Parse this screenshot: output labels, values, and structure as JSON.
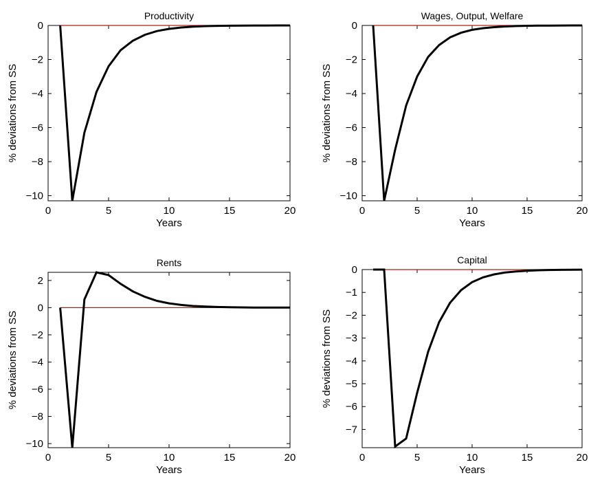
{
  "chart_data": [
    {
      "type": "line",
      "title": "Productivity",
      "xlabel": "Years",
      "ylabel": "% deviations from SS",
      "xlim": [
        0,
        20
      ],
      "ylim": [
        -10.3,
        0
      ],
      "xticks": [
        "0",
        "5",
        "10",
        "15",
        "20"
      ],
      "yticks": [
        "0",
        "−2",
        "−4",
        "−6",
        "−8",
        "−10"
      ],
      "grid": false,
      "reference_line": 0,
      "reference_color": "#b01c1c",
      "series_color": "#000000",
      "x": [
        1,
        2,
        3,
        4,
        5,
        6,
        7,
        8,
        9,
        10,
        11,
        12,
        13,
        14,
        15,
        16,
        17,
        18,
        19,
        20
      ],
      "values": [
        0,
        -10.3,
        -6.3,
        -3.9,
        -2.4,
        -1.45,
        -0.9,
        -0.55,
        -0.33,
        -0.2,
        -0.12,
        -0.07,
        -0.04,
        -0.025,
        -0.015,
        -0.01,
        -0.005,
        -0.003,
        -0.002,
        -0.001
      ]
    },
    {
      "type": "line",
      "title": "Wages, Output, Welfare",
      "xlabel": "Years",
      "ylabel": "% deviations from SS",
      "xlim": [
        0,
        20
      ],
      "ylim": [
        -10.3,
        0
      ],
      "xticks": [
        "0",
        "5",
        "10",
        "15",
        "20"
      ],
      "yticks": [
        "0",
        "−2",
        "−4",
        "−6",
        "−8",
        "−10"
      ],
      "grid": false,
      "reference_line": 0,
      "reference_color": "#b01c1c",
      "series_color": "#000000",
      "x": [
        1,
        2,
        3,
        4,
        5,
        6,
        7,
        8,
        9,
        10,
        11,
        12,
        13,
        14,
        15,
        16,
        17,
        18,
        19,
        20
      ],
      "values": [
        0,
        -10.3,
        -7.3,
        -4.7,
        -3.0,
        -1.85,
        -1.15,
        -0.7,
        -0.43,
        -0.26,
        -0.16,
        -0.1,
        -0.06,
        -0.035,
        -0.02,
        -0.012,
        -0.007,
        -0.004,
        -0.002,
        -0.001
      ]
    },
    {
      "type": "line",
      "title": "Rents",
      "xlabel": "Years",
      "ylabel": "% deviations from SS",
      "xlim": [
        0,
        20
      ],
      "ylim": [
        -10.3,
        2.6
      ],
      "xticks": [
        "0",
        "5",
        "10",
        "15",
        "20"
      ],
      "yticks": [
        "2",
        "0",
        "−2",
        "−4",
        "−6",
        "−8",
        "−10"
      ],
      "grid": false,
      "reference_line": 0,
      "reference_color": "#b01c1c",
      "series_color": "#000000",
      "x": [
        1,
        2,
        3,
        4,
        5,
        6,
        7,
        8,
        9,
        10,
        11,
        12,
        13,
        14,
        15,
        16,
        17,
        18,
        19,
        20
      ],
      "values": [
        0,
        -10.3,
        0.6,
        2.6,
        2.4,
        1.75,
        1.2,
        0.8,
        0.5,
        0.32,
        0.2,
        0.12,
        0.08,
        0.05,
        0.03,
        0.02,
        0.012,
        0.008,
        0.005,
        0.003
      ]
    },
    {
      "type": "line",
      "title": "Capital",
      "xlabel": "Years",
      "ylabel": "% deviations from SS",
      "xlim": [
        0,
        20
      ],
      "ylim": [
        -7.8,
        0
      ],
      "xticks": [
        "0",
        "5",
        "10",
        "15",
        "20"
      ],
      "yticks": [
        "0",
        "−1",
        "−2",
        "−3",
        "−4",
        "−5",
        "−6",
        "−7"
      ],
      "grid": false,
      "reference_line": 0,
      "reference_color": "#b01c1c",
      "series_color": "#000000",
      "x": [
        1,
        2,
        3,
        4,
        5,
        6,
        7,
        8,
        9,
        10,
        11,
        12,
        13,
        14,
        15,
        16,
        17,
        18,
        19,
        20
      ],
      "values": [
        0,
        0,
        -7.75,
        -7.4,
        -5.4,
        -3.6,
        -2.3,
        -1.45,
        -0.9,
        -0.55,
        -0.34,
        -0.21,
        -0.13,
        -0.08,
        -0.05,
        -0.03,
        -0.018,
        -0.011,
        -0.007,
        -0.004
      ]
    }
  ]
}
